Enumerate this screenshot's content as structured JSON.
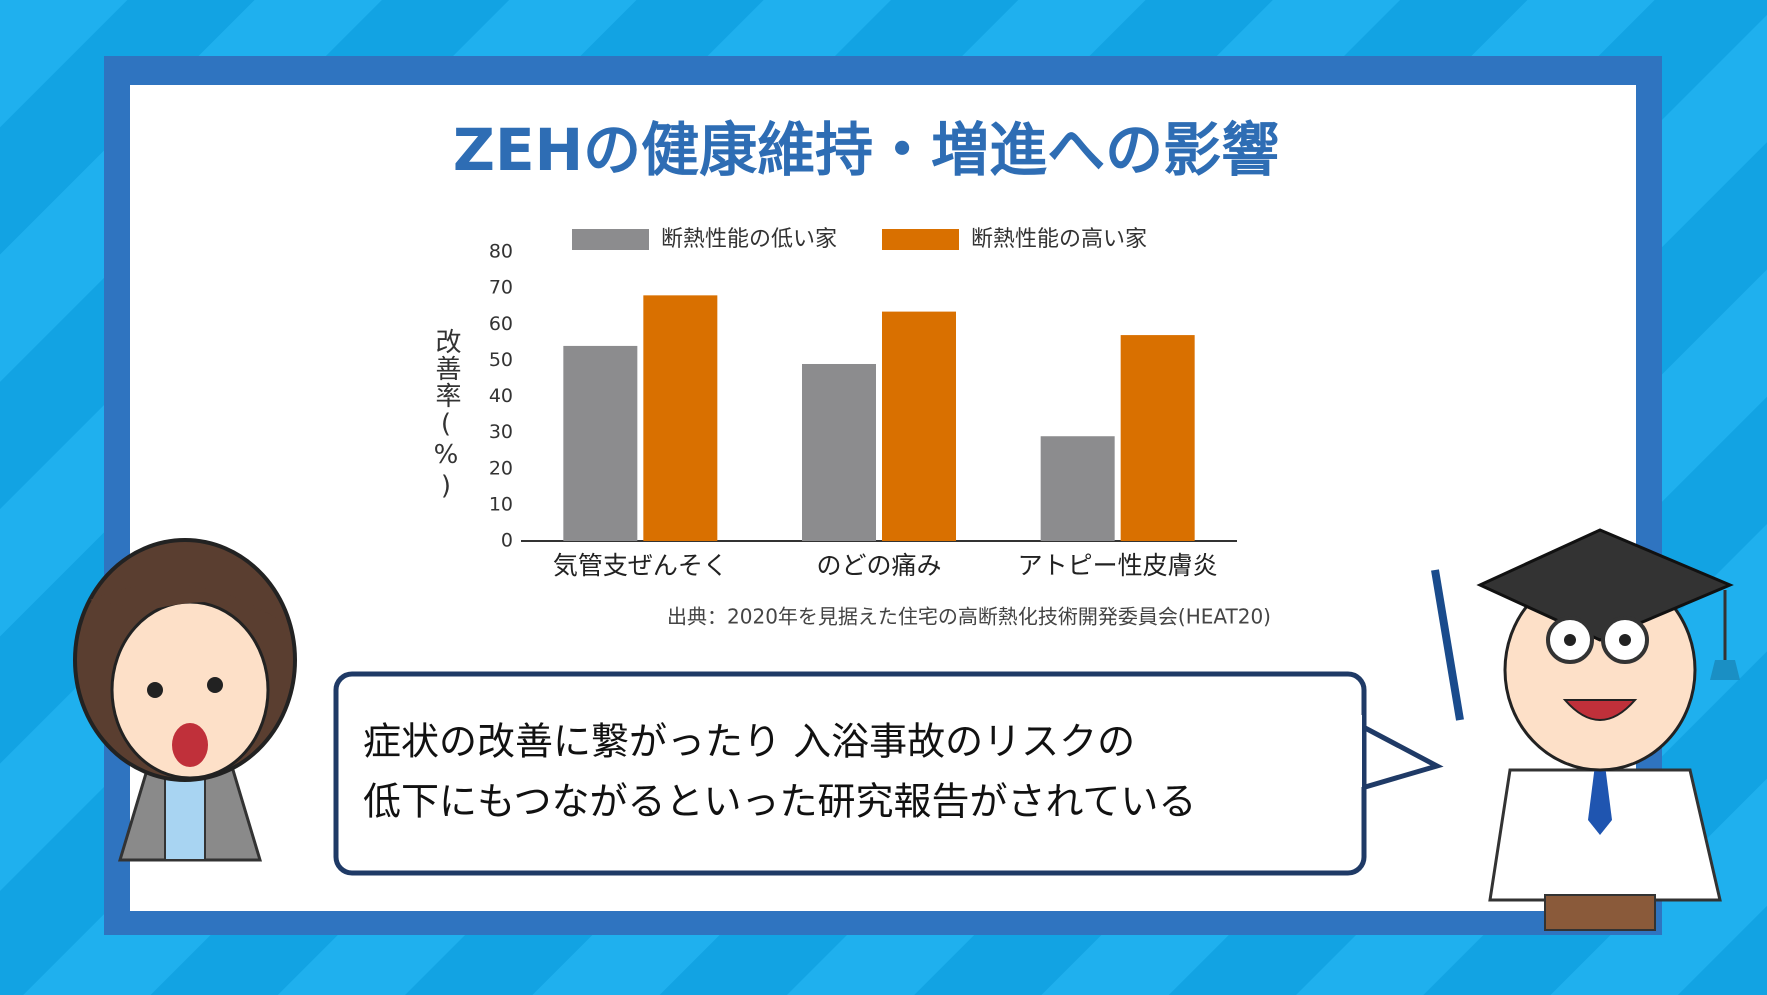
{
  "chart_data": {
    "type": "bar",
    "title": "ZEHの健康維持・増進への影響",
    "ylabel": "改善率(%)",
    "categories": [
      "気管支ぜんそく",
      "のどの痛み",
      "アトピー性皮膚炎"
    ],
    "series": [
      {
        "name": "断熱性能の低い家",
        "color": "#8c8c8e",
        "values": [
          54,
          49,
          29
        ]
      },
      {
        "name": "断熱性能の高い家",
        "color": "#d97000",
        "values": [
          68,
          63.5,
          57
        ]
      }
    ],
    "ylim": [
      0,
      80
    ],
    "yticks": [
      0,
      10,
      20,
      30,
      40,
      50,
      60,
      70,
      80
    ],
    "grid": false,
    "legend": "top",
    "source": "出典：2020年を見据えた住宅の高断熱化技術開発委員会(HEAT20)"
  },
  "caption": {
    "lines": [
      "症状の改善に繋がったり 入浴事故のリスクの",
      "低下にもつながるといった研究報告がされている"
    ]
  }
}
